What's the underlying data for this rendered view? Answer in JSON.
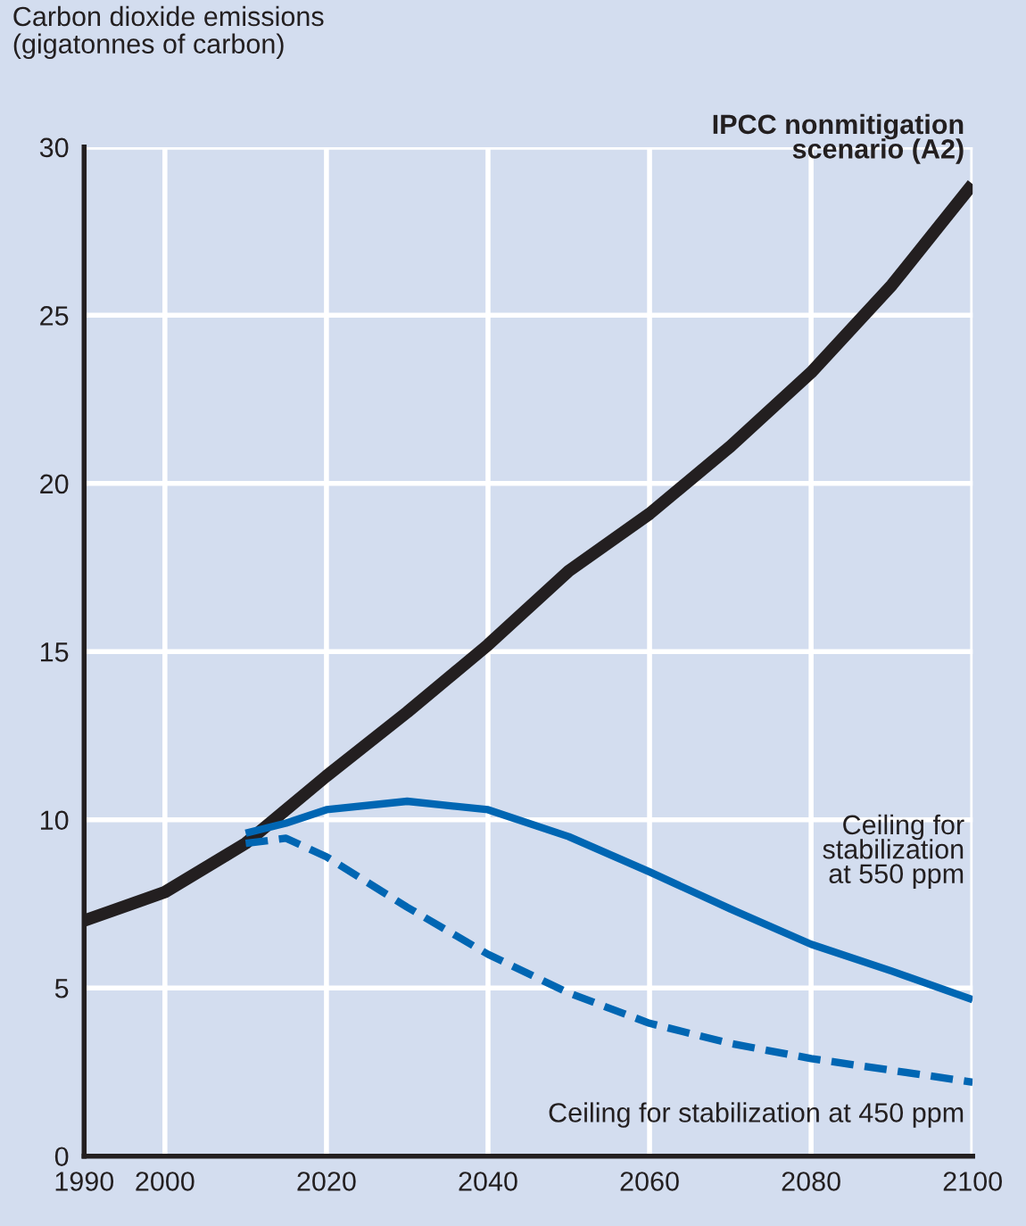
{
  "chart_data": {
    "type": "line",
    "ylabel": "Carbon dioxide emissions\n(gigatonnes of carbon)",
    "xlim": [
      1990,
      2100
    ],
    "ylim": [
      0,
      30
    ],
    "xticks": [
      1990,
      2000,
      2020,
      2040,
      2060,
      2080,
      2100
    ],
    "yticks": [
      0,
      5,
      10,
      15,
      20,
      25,
      30
    ],
    "grid": true,
    "legend": false,
    "marker": "none",
    "series": [
      {
        "name": "IPCC nonmitigation\nscenario (A2)",
        "color": "#231f20",
        "line_style": "solid",
        "x": [
          1990,
          2000,
          2010,
          2020,
          2030,
          2040,
          2050,
          2060,
          2070,
          2080,
          2090,
          2100
        ],
        "values": [
          7.0,
          7.85,
          9.3,
          11.3,
          13.2,
          15.2,
          17.4,
          19.1,
          21.1,
          23.3,
          25.9,
          28.9
        ]
      },
      {
        "name": "Ceiling for\nstabilization\nat 550 ppm",
        "color": "#0066b3",
        "line_style": "solid",
        "x": [
          2010,
          2015,
          2020,
          2030,
          2040,
          2050,
          2060,
          2070,
          2080,
          2090,
          2100
        ],
        "values": [
          9.6,
          9.9,
          10.3,
          10.55,
          10.3,
          9.5,
          8.45,
          7.35,
          6.3,
          5.5,
          4.65
        ]
      },
      {
        "name": "Ceiling for stabilization at 450 ppm",
        "color": "#0066b3",
        "line_style": "dashed",
        "x": [
          2010,
          2015,
          2020,
          2030,
          2040,
          2050,
          2060,
          2070,
          2080,
          2090,
          2100
        ],
        "values": [
          9.3,
          9.45,
          8.9,
          7.4,
          6.0,
          4.85,
          3.95,
          3.35,
          2.9,
          2.55,
          2.2
        ]
      }
    ]
  }
}
